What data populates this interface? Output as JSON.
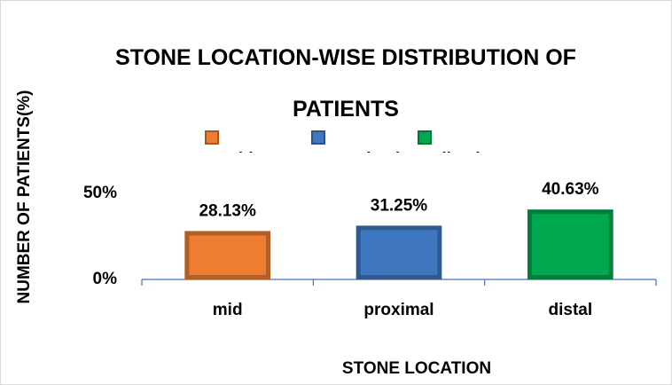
{
  "chart_data": {
    "type": "bar",
    "title": "STONE LOCATION-WISE DISTRIBUTION OF PATIENTS",
    "x_label": "STONE LOCATION",
    "y_label": "NUMBER OF PATIENTS(%)",
    "categories": [
      "mid",
      "proximal",
      "distal"
    ],
    "values": [
      28.13,
      31.25,
      40.63
    ],
    "value_labels": [
      "28.13%",
      "31.25%",
      "40.63%"
    ],
    "colors": [
      "#ed7d31",
      "#3f78c0",
      "#00a84f"
    ],
    "ylim": [
      0,
      50
    ],
    "yticks": [
      {
        "value": 0,
        "label": "0%"
      },
      {
        "value": 50,
        "label": "50%"
      }
    ],
    "grid": false,
    "legend": "top"
  }
}
